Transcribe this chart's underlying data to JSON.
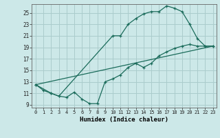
{
  "xlabel": "Humidex (Indice chaleur)",
  "bg_color": "#cce8e8",
  "grid_color": "#aacccc",
  "line_color": "#1a6b5a",
  "xlim": [
    -0.5,
    23.5
  ],
  "ylim": [
    8.5,
    26.5
  ],
  "xticks": [
    0,
    1,
    2,
    3,
    4,
    5,
    6,
    7,
    8,
    9,
    10,
    11,
    12,
    13,
    14,
    15,
    16,
    17,
    18,
    19,
    20,
    21,
    22,
    23
  ],
  "yticks": [
    9,
    11,
    13,
    15,
    17,
    19,
    21,
    23,
    25
  ],
  "line1_x": [
    0,
    1,
    2,
    3,
    4,
    5,
    6,
    7,
    8,
    9,
    10,
    11,
    12,
    13,
    14,
    15,
    16,
    17,
    18,
    19,
    20,
    21,
    22,
    23
  ],
  "line1_y": [
    12.5,
    11.5,
    11.0,
    10.5,
    10.3,
    11.2,
    10.0,
    9.2,
    9.2,
    13.0,
    13.5,
    14.2,
    15.5,
    16.2,
    15.5,
    16.2,
    17.5,
    18.2,
    18.8,
    19.2,
    19.5,
    19.2,
    19.2,
    19.2
  ],
  "line2_x": [
    0,
    2,
    3,
    10,
    11,
    12,
    13,
    14,
    15,
    16,
    17,
    18,
    19,
    20,
    21,
    22,
    23
  ],
  "line2_y": [
    12.5,
    11.0,
    10.5,
    21.0,
    21.0,
    23.0,
    24.0,
    24.8,
    25.2,
    25.2,
    26.2,
    25.8,
    25.2,
    23.0,
    20.5,
    19.2,
    19.2
  ],
  "line3_x": [
    0,
    23
  ],
  "line3_y": [
    12.5,
    19.2
  ]
}
